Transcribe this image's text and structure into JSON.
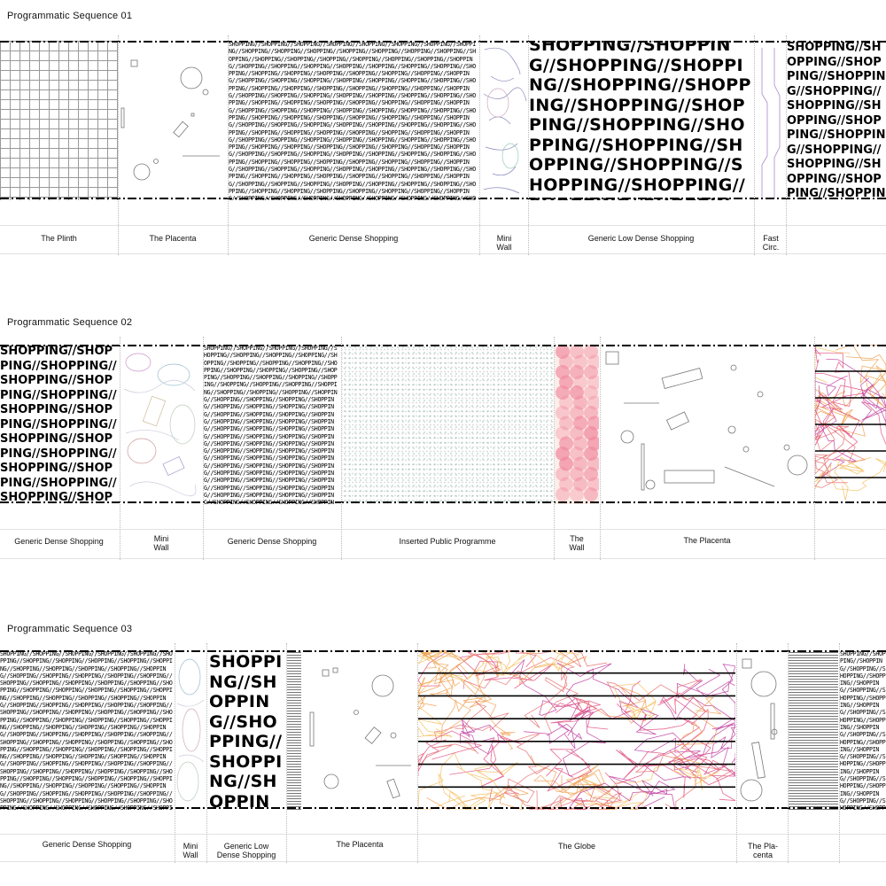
{
  "shopping_phrase": "SHOPPING//",
  "sequences": [
    {
      "title": "Programmatic Sequence 01",
      "labels": [
        "The Plinth",
        "The Placenta",
        "Generic Dense Shopping",
        "Mini\nWall",
        "Generic Low Dense Shopping",
        "Fast\nCirc."
      ]
    },
    {
      "title": "Programmatic Sequence 02",
      "labels": [
        "Generic Dense Shopping",
        "Mini\nWall",
        "Generic Dense Shopping",
        "Inserted Public Programme",
        "The\nWall",
        "The Placenta"
      ]
    },
    {
      "title": "Programmatic Sequence 03",
      "labels": [
        "Generic Dense Shopping",
        "Mini\nWall",
        "Generic Low\nDense Shopping",
        "The Placenta",
        "The Globe",
        "The Pla-\ncenta"
      ]
    }
  ],
  "colors": {
    "dashed_border": "#000000",
    "scribble": [
      "#e05080",
      "#f0a050",
      "#c040a0",
      "#e87070",
      "#f5c060"
    ],
    "wall_circles": "#f08aa0"
  }
}
